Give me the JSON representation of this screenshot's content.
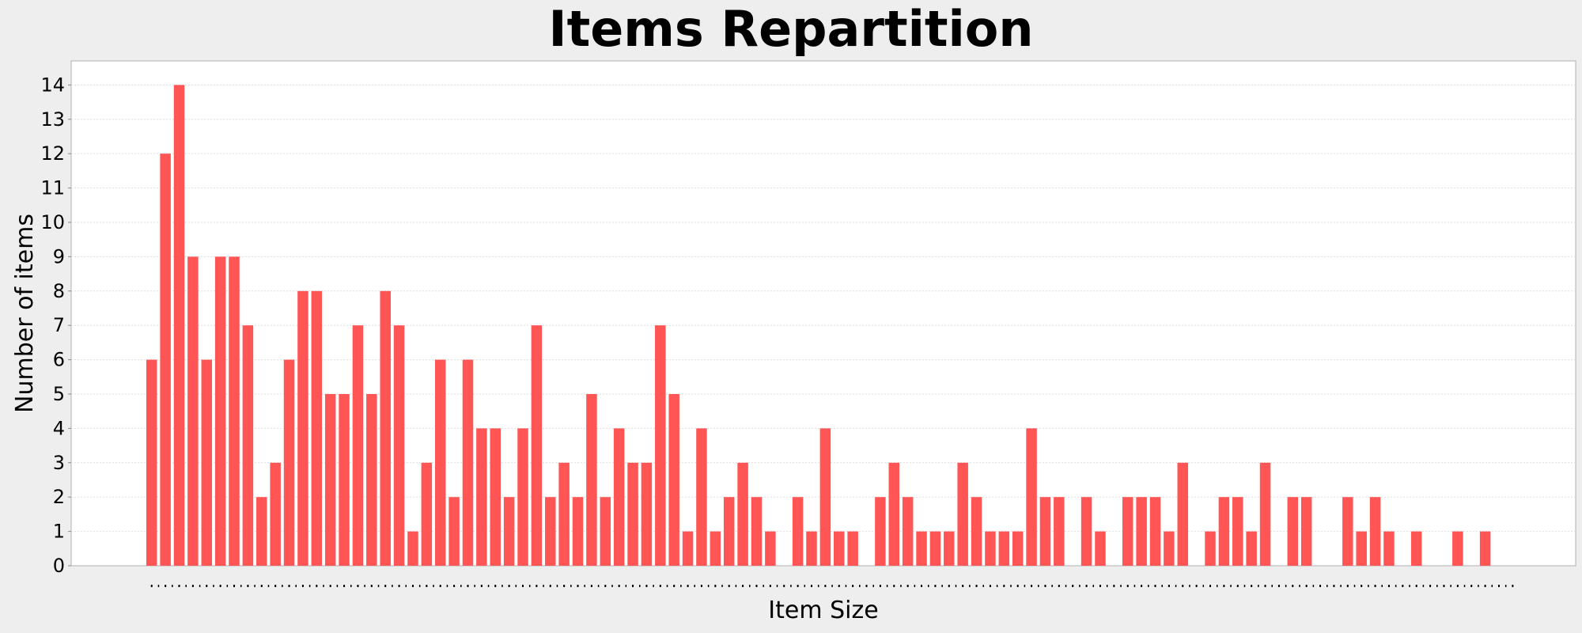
{
  "chart_data": {
    "type": "bar",
    "title": "Items Repartition",
    "xlabel": "Item Size",
    "ylabel": "Number of items",
    "ylim": [
      0,
      14.7
    ],
    "yticks": [
      0,
      1,
      2,
      3,
      4,
      5,
      6,
      7,
      8,
      9,
      10,
      11,
      12,
      13,
      14
    ],
    "x_tick_labels_visible": false,
    "grid": true,
    "legend": "none",
    "colors": {
      "bar": "#ff5555",
      "plot_background": "#ffffff",
      "page_background": "#eeeeee",
      "grid": "#dddddd"
    },
    "values": [
      6,
      12,
      14,
      9,
      6,
      9,
      9,
      7,
      2,
      3,
      6,
      8,
      8,
      5,
      5,
      7,
      5,
      8,
      7,
      1,
      3,
      6,
      2,
      6,
      4,
      4,
      2,
      4,
      7,
      2,
      3,
      2,
      5,
      2,
      4,
      3,
      3,
      7,
      5,
      1,
      4,
      1,
      2,
      3,
      2,
      1,
      0,
      2,
      1,
      4,
      1,
      1,
      0,
      2,
      3,
      2,
      1,
      1,
      1,
      3,
      2,
      1,
      1,
      1,
      4,
      2,
      2,
      0,
      2,
      1,
      0,
      2,
      2,
      2,
      1,
      3,
      0,
      1,
      2,
      2,
      1,
      3,
      0,
      2,
      2,
      0,
      0,
      2,
      1,
      2,
      1,
      0,
      1,
      0,
      0,
      1,
      0,
      1,
      0,
      0
    ]
  }
}
